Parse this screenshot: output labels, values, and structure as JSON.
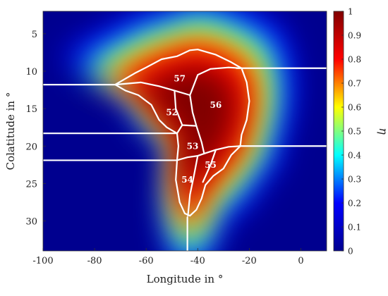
{
  "chart_data": {
    "type": "heatmap",
    "xlabel": "Longitude in °",
    "ylabel": "Colatitude in °",
    "colorbar_label": "η",
    "xlim": [
      -100,
      10
    ],
    "ylim": [
      2,
      34
    ],
    "y_reversed": true,
    "xticks": [
      -100,
      -80,
      -60,
      -40,
      -20,
      0
    ],
    "yticks": [
      5,
      10,
      15,
      20,
      25,
      30
    ],
    "clim": [
      0,
      1
    ],
    "cticks": [
      0,
      0.1,
      0.2,
      0.3,
      0.4,
      0.5,
      0.6,
      0.7,
      0.8,
      0.9,
      1
    ],
    "colormap": "jet",
    "colormap_stops": [
      "#00008f",
      "#0000ff",
      "#00ffff",
      "#ffff00",
      "#ff0000",
      "#800000"
    ],
    "boundary_color": "#ffffff",
    "region_labels": [
      {
        "id": "57",
        "lon": -47,
        "colat": 11.0
      },
      {
        "id": "56",
        "lon": -33,
        "colat": 14.5
      },
      {
        "id": "52",
        "lon": -50,
        "colat": 15.5
      },
      {
        "id": "53",
        "lon": -42,
        "colat": 20.0
      },
      {
        "id": "54",
        "lon": -44,
        "colat": 24.5
      },
      {
        "id": "55",
        "lon": -35,
        "colat": 22.5
      }
    ],
    "horizontal_cut_lines": [
      {
        "colat": 11.8,
        "lon_from": -100,
        "lon_to": -72
      },
      {
        "colat": 9.6,
        "lon_from": -25,
        "lon_to": 10
      },
      {
        "colat": 18.3,
        "lon_from": -100,
        "lon_to": -48
      },
      {
        "colat": 21.9,
        "lon_from": -100,
        "lon_to": -48
      },
      {
        "colat": 20.0,
        "lon_from": -24,
        "lon_to": 10
      }
    ],
    "vertical_cut_lines": [
      {
        "lon": -44,
        "colat_from": 29.5,
        "colat_to": 34
      }
    ],
    "outline": [
      [
        -40,
        7.1
      ],
      [
        -33,
        7.8
      ],
      [
        -27,
        8.8
      ],
      [
        -23,
        9.6
      ],
      [
        -21,
        11.5
      ],
      [
        -20,
        14
      ],
      [
        -21,
        16.5
      ],
      [
        -23,
        18.5
      ],
      [
        -23.5,
        20.0
      ],
      [
        -27,
        21.2
      ],
      [
        -30,
        23.0
      ],
      [
        -34,
        24.0
      ],
      [
        -37,
        25.2
      ],
      [
        -38.5,
        27.0
      ],
      [
        -40.5,
        28.5
      ],
      [
        -43,
        29.3
      ],
      [
        -45,
        29.0
      ],
      [
        -47,
        27.5
      ],
      [
        -48.5,
        24.5
      ],
      [
        -48,
        21.9
      ],
      [
        -47.5,
        20.0
      ],
      [
        -48,
        18.3
      ],
      [
        -52,
        17.5
      ],
      [
        -55,
        16.5
      ],
      [
        -58,
        14.5
      ],
      [
        -63,
        13.2
      ],
      [
        -68,
        12.6
      ],
      [
        -72,
        11.8
      ],
      [
        -69,
        11.2
      ],
      [
        -64,
        10.2
      ],
      [
        -60,
        9.5
      ],
      [
        -54,
        8.4
      ],
      [
        -48,
        8.0
      ],
      [
        -43,
        7.2
      ]
    ],
    "internal_boundaries": [
      [
        [
          -72,
          11.8
        ],
        [
          -62,
          11.5
        ],
        [
          -55,
          12.0
        ],
        [
          -49,
          12.6
        ],
        [
          -43,
          13.2
        ]
      ],
      [
        [
          -43,
          13.2
        ],
        [
          -40,
          10.5
        ],
        [
          -35,
          9.7
        ],
        [
          -28,
          9.5
        ],
        [
          -23,
          9.6
        ]
      ],
      [
        [
          -49,
          12.6
        ],
        [
          -48.5,
          15
        ],
        [
          -46,
          17.2
        ],
        [
          -40.5,
          17.3
        ]
      ],
      [
        [
          -43,
          13.2
        ],
        [
          -42,
          15.5
        ],
        [
          -40.5,
          17.3
        ],
        [
          -38.5,
          19.5
        ],
        [
          -37.5,
          21.0
        ]
      ],
      [
        [
          -48,
          18.3
        ],
        [
          -46,
          17.2
        ]
      ],
      [
        [
          -48,
          21.9
        ],
        [
          -44,
          21.5
        ],
        [
          -40,
          21.3
        ],
        [
          -37.5,
          21.0
        ]
      ],
      [
        [
          -37.5,
          21.0
        ],
        [
          -33,
          20.5
        ],
        [
          -28,
          20.1
        ],
        [
          -23.5,
          20.0
        ]
      ],
      [
        [
          -40,
          21.3
        ],
        [
          -41.5,
          24
        ],
        [
          -43,
          26.5
        ],
        [
          -43.8,
          29.3
        ]
      ],
      [
        [
          -33,
          20.5
        ],
        [
          -35,
          22.5
        ],
        [
          -38,
          24.8
        ]
      ]
    ]
  }
}
